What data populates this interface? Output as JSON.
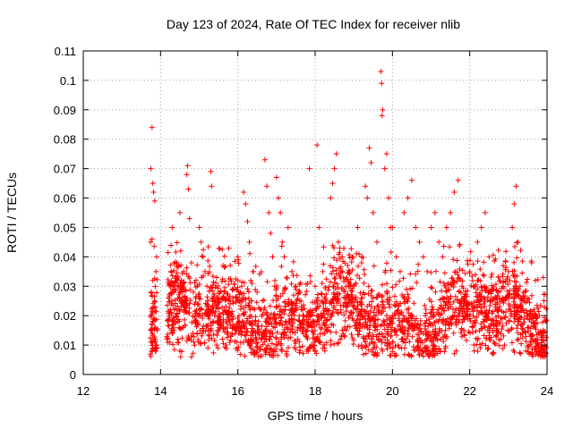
{
  "chart_data": {
    "type": "scatter",
    "title": "Day 123 of 2024, Rate Of TEC Index for receiver nlib",
    "xlabel": "GPS time / hours",
    "ylabel": "ROTI / TECUs",
    "xlim": [
      12,
      24
    ],
    "ylim": [
      0,
      0.11
    ],
    "xticks": [
      "12",
      "14",
      "16",
      "18",
      "20",
      "22",
      "24"
    ],
    "yticks": [
      "0",
      "0.01",
      "0.02",
      "0.03",
      "0.04",
      "0.05",
      "0.06",
      "0.07",
      "0.08",
      "0.09",
      "0.1",
      "0.11"
    ],
    "grid": true,
    "marker": "+",
    "color": "#ff0000",
    "series": [
      {
        "name": "ROTI",
        "points": [
          [
            13.78,
            0.084
          ],
          [
            13.75,
            0.07
          ],
          [
            13.8,
            0.065
          ],
          [
            13.82,
            0.062
          ],
          [
            13.85,
            0.059
          ],
          [
            13.74,
            0.045
          ],
          [
            13.78,
            0.046
          ],
          [
            13.9,
            0.04
          ],
          [
            13.88,
            0.035
          ],
          [
            13.8,
            0.032
          ],
          [
            13.76,
            0.028
          ],
          [
            13.84,
            0.025
          ],
          [
            13.79,
            0.021
          ],
          [
            13.81,
            0.018
          ],
          [
            13.77,
            0.015
          ],
          [
            13.86,
            0.012
          ],
          [
            13.9,
            0.01
          ],
          [
            13.75,
            0.011
          ],
          [
            14.2,
            0.026
          ],
          [
            14.25,
            0.022
          ],
          [
            14.3,
            0.018
          ],
          [
            14.35,
            0.015
          ],
          [
            14.4,
            0.02
          ],
          [
            14.45,
            0.012
          ],
          [
            14.5,
            0.008
          ],
          [
            14.52,
            0.006
          ],
          [
            14.55,
            0.03
          ],
          [
            14.6,
            0.035
          ],
          [
            14.65,
            0.025
          ],
          [
            14.7,
            0.071
          ],
          [
            14.68,
            0.068
          ],
          [
            14.72,
            0.063
          ],
          [
            14.75,
            0.053
          ],
          [
            14.8,
            0.038
          ],
          [
            14.85,
            0.028
          ],
          [
            14.9,
            0.018
          ],
          [
            14.95,
            0.014
          ],
          [
            14.5,
            0.055
          ],
          [
            14.3,
            0.05
          ],
          [
            15.0,
            0.05
          ],
          [
            15.05,
            0.045
          ],
          [
            15.1,
            0.04
          ],
          [
            15.15,
            0.035
          ],
          [
            15.2,
            0.03
          ],
          [
            15.3,
            0.069
          ],
          [
            15.32,
            0.064
          ],
          [
            15.35,
            0.025
          ],
          [
            15.4,
            0.02
          ],
          [
            15.5,
            0.015
          ],
          [
            15.6,
            0.012
          ],
          [
            15.7,
            0.018
          ],
          [
            15.8,
            0.024
          ],
          [
            15.9,
            0.016
          ],
          [
            15.45,
            0.01
          ],
          [
            15.25,
            0.022
          ],
          [
            16.0,
            0.04
          ],
          [
            16.1,
            0.03
          ],
          [
            16.15,
            0.062
          ],
          [
            16.2,
            0.058
          ],
          [
            16.25,
            0.052
          ],
          [
            16.3,
            0.045
          ],
          [
            16.4,
            0.035
          ],
          [
            16.5,
            0.028
          ],
          [
            16.6,
            0.022
          ],
          [
            16.7,
            0.073
          ],
          [
            16.75,
            0.064
          ],
          [
            16.8,
            0.055
          ],
          [
            16.85,
            0.048
          ],
          [
            16.9,
            0.04
          ],
          [
            16.95,
            0.03
          ],
          [
            16.3,
            0.01
          ],
          [
            16.6,
            0.012
          ],
          [
            16.45,
            0.018
          ],
          [
            17.0,
            0.067
          ],
          [
            17.05,
            0.06
          ],
          [
            17.1,
            0.055
          ],
          [
            17.15,
            0.045
          ],
          [
            17.2,
            0.04
          ],
          [
            17.3,
            0.05
          ],
          [
            17.4,
            0.035
          ],
          [
            17.5,
            0.03
          ],
          [
            17.6,
            0.025
          ],
          [
            17.7,
            0.02
          ],
          [
            17.8,
            0.015
          ],
          [
            17.9,
            0.01
          ],
          [
            17.25,
            0.018
          ],
          [
            17.55,
            0.012
          ],
          [
            17.85,
            0.07
          ],
          [
            18.0,
            0.03
          ],
          [
            18.05,
            0.078
          ],
          [
            18.1,
            0.05
          ],
          [
            18.2,
            0.035
          ],
          [
            18.3,
            0.025
          ],
          [
            18.4,
            0.06
          ],
          [
            18.45,
            0.065
          ],
          [
            18.5,
            0.07
          ],
          [
            18.55,
            0.075
          ],
          [
            18.6,
            0.045
          ],
          [
            18.7,
            0.04
          ],
          [
            18.8,
            0.03
          ],
          [
            18.9,
            0.02
          ],
          [
            18.25,
            0.008
          ],
          [
            18.65,
            0.012
          ],
          [
            18.35,
            0.016
          ],
          [
            19.0,
            0.03
          ],
          [
            19.1,
            0.05
          ],
          [
            19.2,
            0.04
          ],
          [
            19.3,
            0.064
          ],
          [
            19.35,
            0.06
          ],
          [
            19.4,
            0.077
          ],
          [
            19.45,
            0.072
          ],
          [
            19.5,
            0.055
          ],
          [
            19.6,
            0.045
          ],
          [
            19.7,
            0.103
          ],
          [
            19.72,
            0.099
          ],
          [
            19.75,
            0.09
          ],
          [
            19.73,
            0.088
          ],
          [
            19.8,
            0.07
          ],
          [
            19.85,
            0.075
          ],
          [
            19.9,
            0.06
          ],
          [
            19.95,
            0.05
          ],
          [
            19.2,
            0.01
          ],
          [
            19.55,
            0.015
          ],
          [
            19.85,
            0.02
          ],
          [
            20.0,
            0.05
          ],
          [
            20.1,
            0.04
          ],
          [
            20.2,
            0.035
          ],
          [
            20.3,
            0.055
          ],
          [
            20.4,
            0.06
          ],
          [
            20.5,
            0.066
          ],
          [
            20.6,
            0.05
          ],
          [
            20.7,
            0.045
          ],
          [
            20.8,
            0.04
          ],
          [
            20.9,
            0.035
          ],
          [
            20.15,
            0.01
          ],
          [
            20.55,
            0.015
          ],
          [
            20.85,
            0.02
          ],
          [
            21.0,
            0.05
          ],
          [
            21.1,
            0.055
          ],
          [
            21.2,
            0.045
          ],
          [
            21.3,
            0.04
          ],
          [
            21.4,
            0.05
          ],
          [
            21.5,
            0.055
          ],
          [
            21.6,
            0.062
          ],
          [
            21.7,
            0.066
          ],
          [
            21.8,
            0.03
          ],
          [
            21.9,
            0.025
          ],
          [
            21.25,
            0.012
          ],
          [
            21.65,
            0.008
          ],
          [
            21.85,
            0.015
          ],
          [
            22.0,
            0.035
          ],
          [
            22.1,
            0.03
          ],
          [
            22.2,
            0.045
          ],
          [
            22.3,
            0.05
          ],
          [
            22.4,
            0.055
          ],
          [
            22.5,
            0.04
          ],
          [
            22.6,
            0.025
          ],
          [
            22.7,
            0.015
          ],
          [
            22.8,
            0.012
          ],
          [
            22.9,
            0.01
          ],
          [
            22.6,
            0.007
          ],
          [
            22.35,
            0.018
          ],
          [
            23.0,
            0.035
          ],
          [
            23.1,
            0.05
          ],
          [
            23.15,
            0.058
          ],
          [
            23.2,
            0.064
          ],
          [
            23.25,
            0.045
          ],
          [
            23.3,
            0.03
          ],
          [
            23.4,
            0.025
          ],
          [
            23.5,
            0.02
          ],
          [
            23.6,
            0.038
          ],
          [
            23.7,
            0.032
          ],
          [
            23.8,
            0.02
          ],
          [
            23.9,
            0.015
          ],
          [
            23.95,
            0.01
          ],
          [
            23.45,
            0.008
          ],
          [
            23.75,
            0.012
          ]
        ]
      }
    ]
  }
}
